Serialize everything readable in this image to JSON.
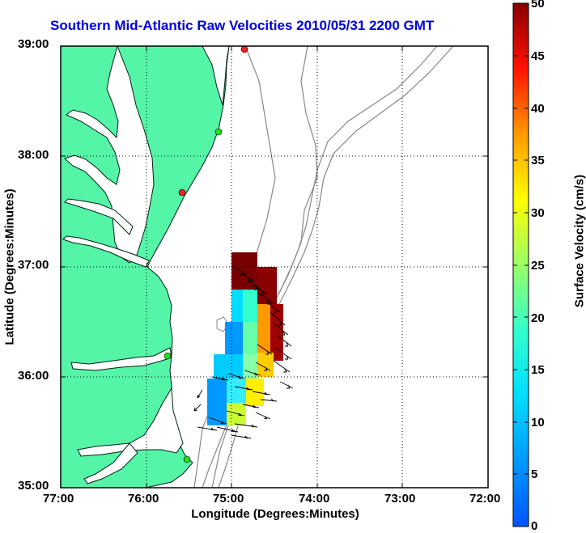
{
  "title": "Southern Mid-Atlantic Raw Velocities 2010/05/31 2200 GMT",
  "axes": {
    "xlabel": "Longitude (Degrees:Minutes)",
    "ylabel": "Latitude (Degrees:Minutes)",
    "x_ticks": [
      "77:00",
      "76:00",
      "75:00",
      "74:00",
      "73:00",
      "72:00"
    ],
    "y_ticks": [
      "39:00",
      "38:00",
      "37:00",
      "36:00",
      "35:00"
    ],
    "grid": true
  },
  "colorbar": {
    "label": "Surface Velocity (cm/s)",
    "min": 0,
    "max": 50,
    "ticks": [
      "50",
      "45",
      "40",
      "35",
      "30",
      "25",
      "20",
      "15",
      "10",
      "5",
      "0"
    ],
    "colormap": "jet"
  },
  "colors": {
    "land": "#55f5a8",
    "bathymetry": "#888888",
    "title": "#0000dd",
    "station_active": "#22dd22",
    "station_other": "#ee2222"
  },
  "map_extent": {
    "lon": [
      -77,
      -72
    ],
    "lat": [
      35,
      39
    ]
  },
  "stations": [
    {
      "lon": -75.13,
      "lat": 38.97,
      "status": "red"
    },
    {
      "lon": -75.08,
      "lat": 38.22,
      "status": "green"
    },
    {
      "lon": -75.53,
      "lat": 37.68,
      "status": "red"
    },
    {
      "lon": -75.74,
      "lat": 36.18,
      "status": "green"
    },
    {
      "lon": -75.47,
      "lat": 35.24,
      "status": "green"
    }
  ],
  "velocity_field": {
    "lon": [
      -75.4,
      -74.6
    ],
    "lat": [
      35.6,
      36.9
    ],
    "speed_range_cm_s": [
      8,
      50
    ],
    "description": "raw radial/total vector field"
  }
}
